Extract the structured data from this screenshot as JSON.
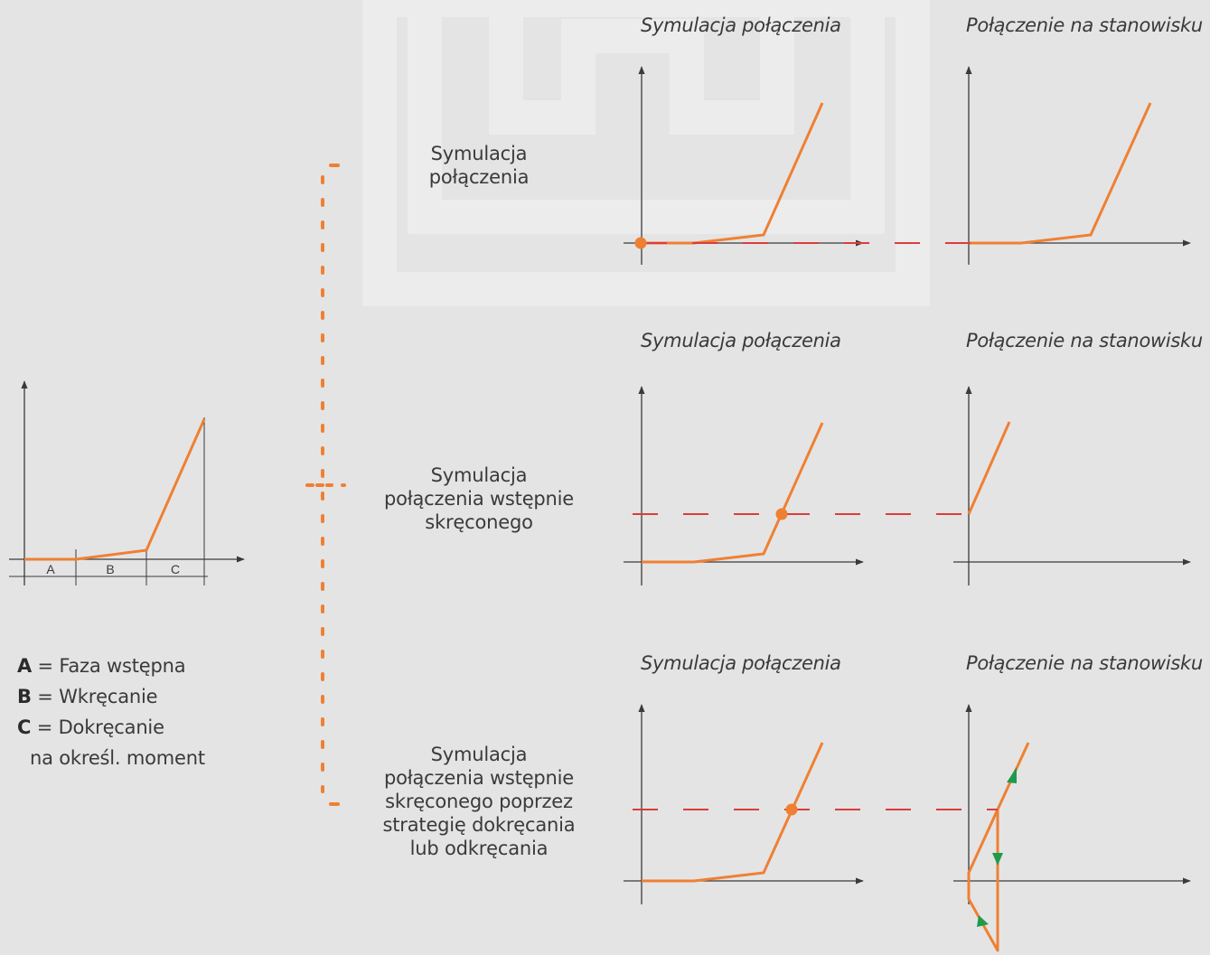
{
  "colors": {
    "curve": "#ef8033",
    "reference": "#dc3c3c",
    "axis": "#3a3a3a",
    "arrow_marker": "#1f9a4c",
    "background": "#e4e4e4"
  },
  "column_headers": {
    "simulation": "Symulacja połączenia",
    "test_bench": "Połączenie na stanowisku"
  },
  "rows": [
    {
      "label": [
        "Symulacja",
        "połączenia"
      ]
    },
    {
      "label": [
        "Symulacja",
        "połączenia wstępnie",
        "skręconego"
      ]
    },
    {
      "label": [
        "Symulacja",
        "połączenia wstępnie",
        "skręconego poprzez",
        "strategię dokręcania",
        "lub odkręcania"
      ]
    }
  ],
  "phase_chart": {
    "phases": [
      "A",
      "B",
      "C"
    ]
  },
  "legend": [
    {
      "key": "A",
      "text": "= Faza wstępna"
    },
    {
      "key": "B",
      "text": "= Wkręcanie"
    },
    {
      "key": "C",
      "text": "= Dokręcanie"
    }
  ],
  "legend_continuation": "na określ. moment"
}
